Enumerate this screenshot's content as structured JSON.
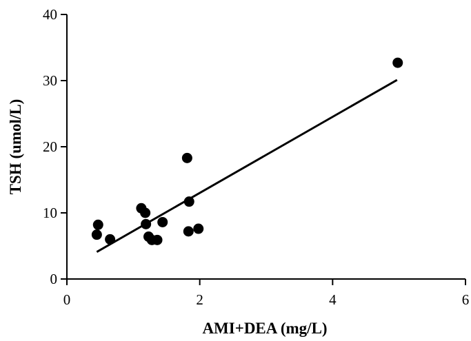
{
  "chart_data": {
    "type": "scatter",
    "title": "",
    "xlabel": "AMI+DEA (mg/L)",
    "ylabel": "TSH (umol/L)",
    "xlim": [
      0,
      6
    ],
    "ylim": [
      0,
      40
    ],
    "xticks": [
      "0",
      "2",
      "4",
      "6"
    ],
    "yticks": [
      "0",
      "10",
      "20",
      "30",
      "40"
    ],
    "grid": false,
    "legend": "none",
    "points": [
      {
        "x": 0.45,
        "y": 6.7
      },
      {
        "x": 0.47,
        "y": 8.2
      },
      {
        "x": 0.65,
        "y": 6.0
      },
      {
        "x": 1.12,
        "y": 10.7
      },
      {
        "x": 1.18,
        "y": 10.0
      },
      {
        "x": 1.19,
        "y": 8.3
      },
      {
        "x": 1.23,
        "y": 6.4
      },
      {
        "x": 1.28,
        "y": 5.9
      },
      {
        "x": 1.36,
        "y": 5.9
      },
      {
        "x": 1.44,
        "y": 8.6
      },
      {
        "x": 1.81,
        "y": 18.3
      },
      {
        "x": 1.83,
        "y": 7.2
      },
      {
        "x": 1.84,
        "y": 11.7
      },
      {
        "x": 1.98,
        "y": 7.6
      },
      {
        "x": 4.98,
        "y": 32.7
      }
    ],
    "regression_line": {
      "x": [
        0.45,
        4.97
      ],
      "y": [
        4.1,
        30.1
      ]
    },
    "colors": {
      "points": "#000000",
      "line": "#000000",
      "axes": "#000000"
    }
  }
}
